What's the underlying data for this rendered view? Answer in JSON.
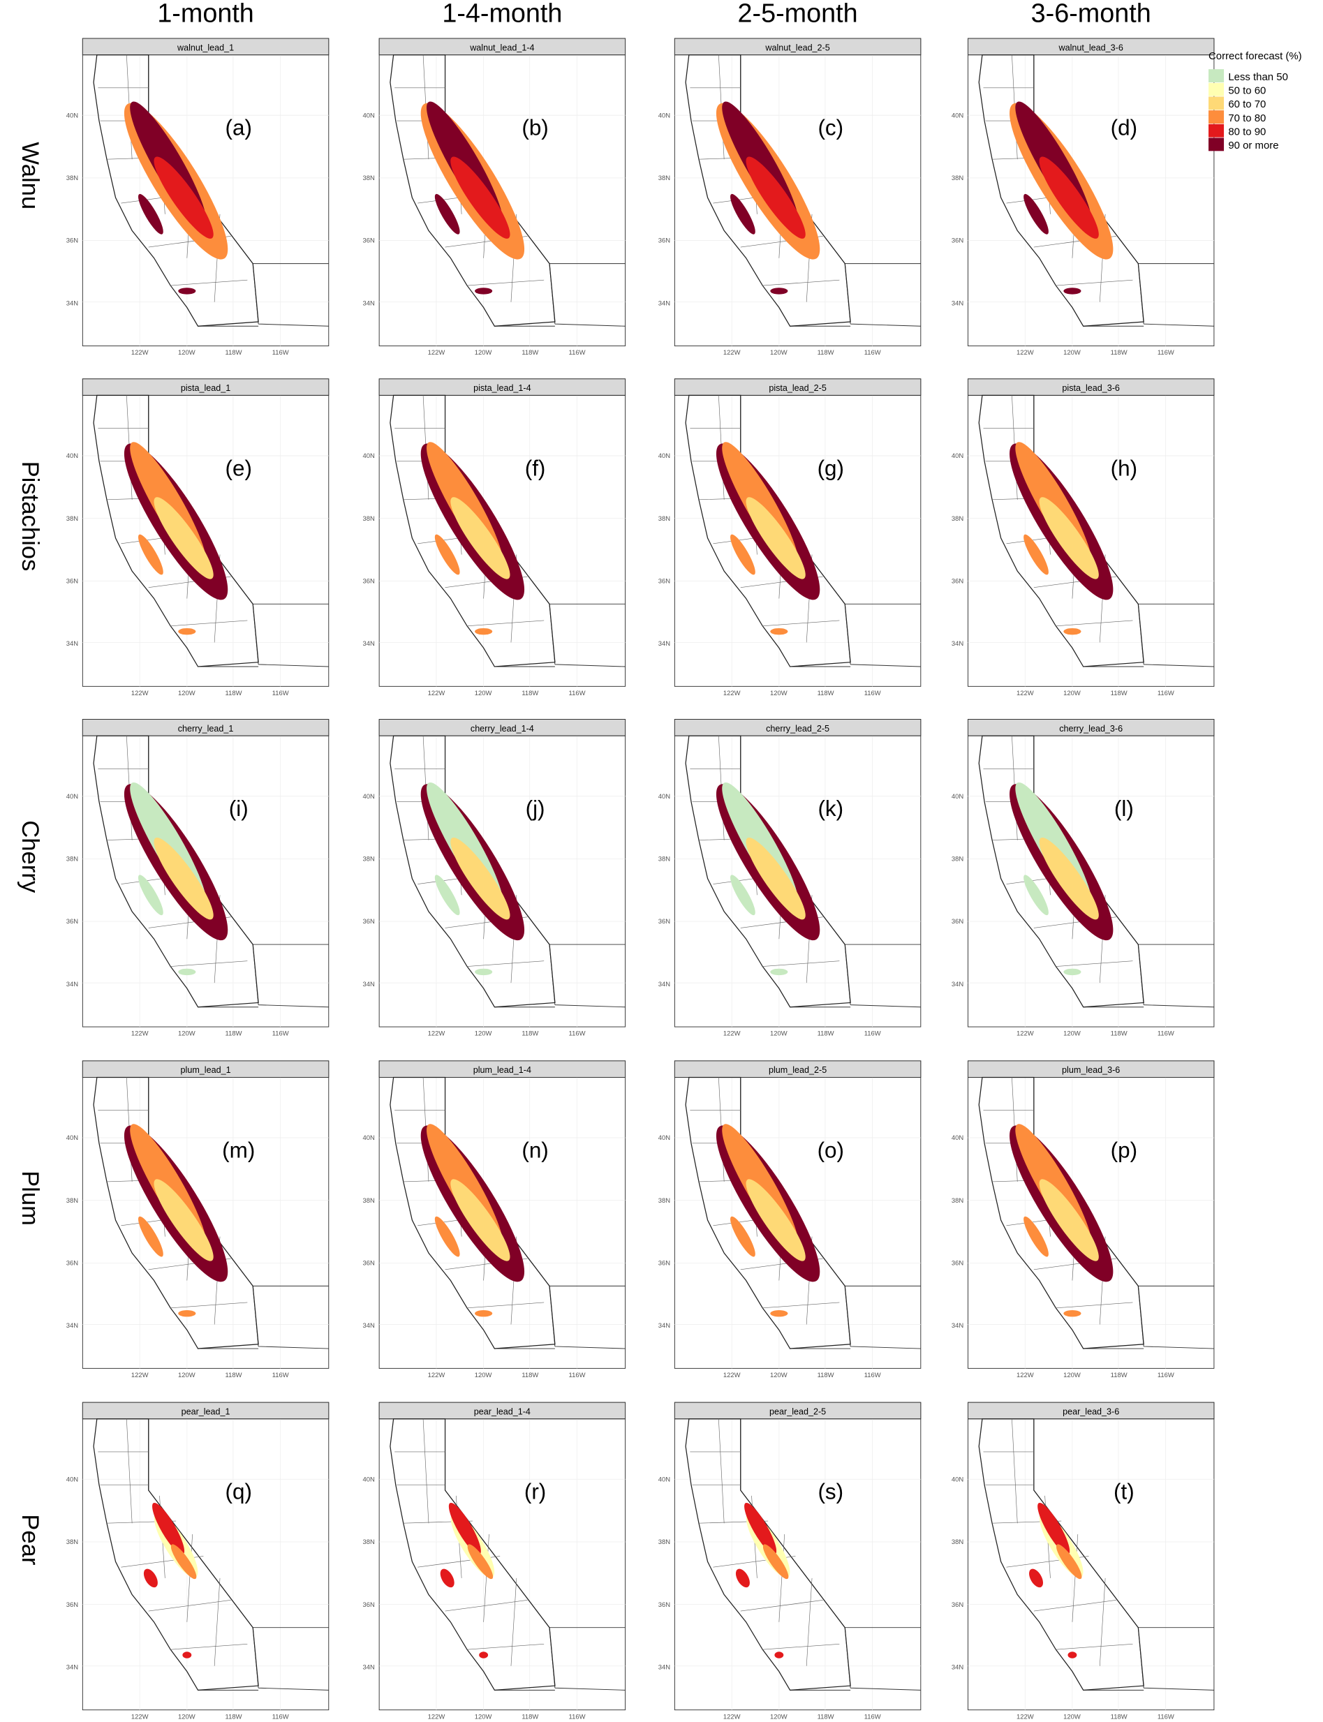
{
  "column_headers": [
    "1-month",
    "1-4-month",
    "2-5-month",
    "3-6-month"
  ],
  "rows": [
    {
      "label": "Walnu",
      "panels": [
        {
          "strip": "walnut_lead_1",
          "letter": "(a)"
        },
        {
          "strip": "walnut_lead_1-4",
          "letter": "(b)"
        },
        {
          "strip": "walnut_lead_2-5",
          "letter": "(c)"
        },
        {
          "strip": "walnut_lead_3-6",
          "letter": "(d)"
        }
      ]
    },
    {
      "label": "Pistachios",
      "panels": [
        {
          "strip": "pista_lead_1",
          "letter": "(e)"
        },
        {
          "strip": "pista_lead_1-4",
          "letter": "(f)"
        },
        {
          "strip": "pista_lead_2-5",
          "letter": "(g)"
        },
        {
          "strip": "pista_lead_3-6",
          "letter": "(h)"
        }
      ]
    },
    {
      "label": "Cherry",
      "panels": [
        {
          "strip": "cherry_lead_1",
          "letter": "(i)"
        },
        {
          "strip": "cherry_lead_1-4",
          "letter": "(j)"
        },
        {
          "strip": "cherry_lead_2-5",
          "letter": "(k)"
        },
        {
          "strip": "cherry_lead_3-6",
          "letter": "(l)"
        }
      ]
    },
    {
      "label": "Plum",
      "panels": [
        {
          "strip": "plum_lead_1",
          "letter": "(m)"
        },
        {
          "strip": "plum_lead_1-4",
          "letter": "(n)"
        },
        {
          "strip": "plum_lead_2-5",
          "letter": "(o)"
        },
        {
          "strip": "plum_lead_3-6",
          "letter": "(p)"
        }
      ]
    },
    {
      "label": "Pear",
      "panels": [
        {
          "strip": "pear_lead_1",
          "letter": "(q)"
        },
        {
          "strip": "pear_lead_1-4",
          "letter": "(r)"
        },
        {
          "strip": "pear_lead_2-5",
          "letter": "(s)"
        },
        {
          "strip": "pear_lead_3-6",
          "letter": "(t)"
        }
      ]
    }
  ],
  "lat_ticks": [
    "40N",
    "38N",
    "36N",
    "34N"
  ],
  "lon_ticks": [
    "122W",
    "120W",
    "118W",
    "116W"
  ],
  "legend": {
    "title": "Correct forecast (%)",
    "entries": [
      {
        "label": "Less than 50",
        "color": "#c7e9c0"
      },
      {
        "label": "50 to 60",
        "color": "#ffffb2"
      },
      {
        "label": "60 to 70",
        "color": "#fed976"
      },
      {
        "label": "70 to 80",
        "color": "#fd8d3c"
      },
      {
        "label": "80 to 90",
        "color": "#e31a1c"
      },
      {
        "label": "90 or more",
        "color": "#800026"
      }
    ]
  }
}
